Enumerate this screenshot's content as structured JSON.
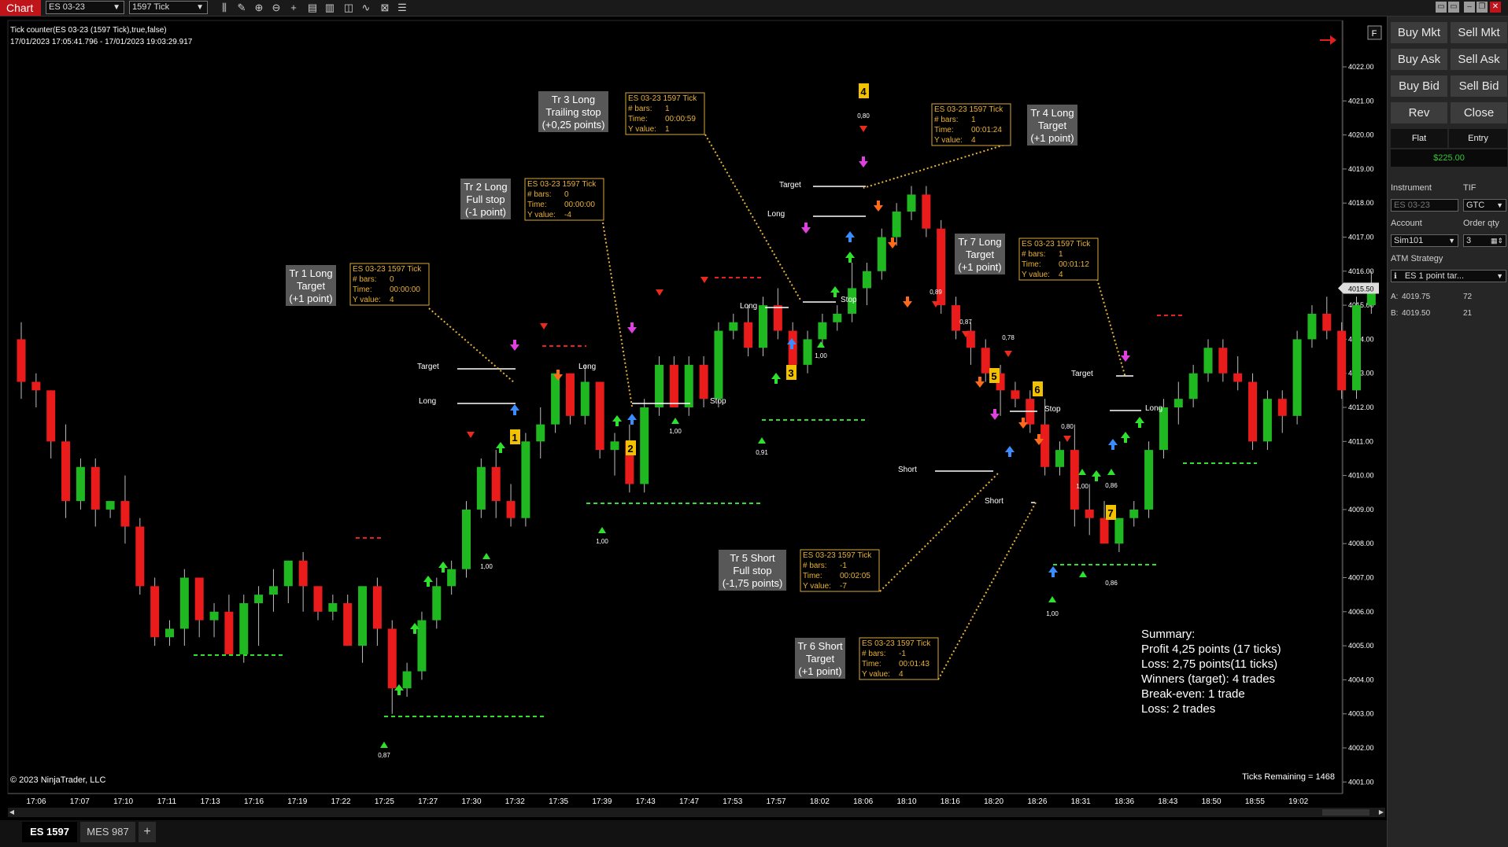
{
  "toolbar": {
    "app_label": "Chart",
    "instrument": "ES 03-23",
    "interval": "1597 Tick",
    "icons": [
      "bar-type-icon",
      "draw-tools-icon",
      "zoom-in-icon",
      "zoom-out-icon",
      "crosshair-icon",
      "data-box-icon",
      "properties-icon",
      "strategies-icon",
      "indicators-icon",
      "templates-icon",
      "object-list-icon"
    ]
  },
  "chart_info": {
    "line1": "Tick counter(ES 03-23 (1597 Tick),true,false)",
    "line2": "17/01/2023 17:05:41.796 - 17/01/2023 19:03:29.917",
    "copyright": "© 2023 NinjaTrader, LLC",
    "ticks_remaining": "Ticks Remaining = 1468",
    "f_button": "F",
    "current_price": "4015.50"
  },
  "chart_data": {
    "type": "candlestick",
    "y_axis": {
      "min": 4001.0,
      "max": 4022.0,
      "ticks": [
        "4022.00",
        "4021.00",
        "4020.00",
        "4019.00",
        "4018.00",
        "4017.00",
        "4016.00",
        "4015.00",
        "4014.00",
        "4013.00",
        "4012.00",
        "4011.00",
        "4010.00",
        "4009.00",
        "4008.00",
        "4007.00",
        "4006.00",
        "4005.00",
        "4004.00",
        "4003.00",
        "4002.00",
        "4001.00"
      ]
    },
    "x_labels": [
      "17:06",
      "17:07",
      "17:10",
      "17:11",
      "17:13",
      "17:16",
      "17:19",
      "17:22",
      "17:25",
      "17:27",
      "17:30",
      "17:32",
      "17:35",
      "17:39",
      "17:43",
      "17:47",
      "17:53",
      "17:57",
      "18:02",
      "18:06",
      "18:10",
      "18:16",
      "18:20",
      "18:26",
      "18:31",
      "18:36",
      "18:43",
      "18:50",
      "18:55",
      "19:02"
    ],
    "candles": [
      [
        4014.0,
        4014.5,
        4012.25,
        4012.75
      ],
      [
        4012.75,
        4013.0,
        4012.0,
        4012.5
      ],
      [
        4012.5,
        4012.5,
        4010.5,
        4011.0
      ],
      [
        4011.0,
        4011.5,
        4008.75,
        4009.25
      ],
      [
        4009.25,
        4010.5,
        4009.0,
        4010.25
      ],
      [
        4010.25,
        4010.5,
        4008.5,
        4009.0
      ],
      [
        4009.0,
        4009.25,
        4008.75,
        4009.25
      ],
      [
        4009.25,
        4010.0,
        4008.0,
        4008.5
      ],
      [
        4008.5,
        4008.75,
        4006.5,
        4006.75
      ],
      [
        4006.75,
        4007.0,
        4005.0,
        4005.25
      ],
      [
        4005.25,
        4005.75,
        4005.0,
        4005.5
      ],
      [
        4005.5,
        4007.25,
        4005.0,
        4007.0
      ],
      [
        4007.0,
        4007.0,
        4005.25,
        4005.75
      ],
      [
        4005.75,
        4006.25,
        4005.25,
        4006.0
      ],
      [
        4006.0,
        4006.5,
        4004.75,
        4004.75
      ],
      [
        4004.75,
        4006.5,
        4004.5,
        4006.25
      ],
      [
        4006.25,
        4006.75,
        4005.0,
        4006.5
      ],
      [
        4006.5,
        4007.25,
        4006.0,
        4006.75
      ],
      [
        4006.75,
        4007.5,
        4006.25,
        4007.5
      ],
      [
        4007.5,
        4007.75,
        4006.0,
        4006.75
      ],
      [
        4006.75,
        4006.75,
        4005.75,
        4006.0
      ],
      [
        4006.0,
        4006.5,
        4005.75,
        4006.25
      ],
      [
        4006.25,
        4006.5,
        4005.0,
        4005.0
      ],
      [
        4005.0,
        4006.75,
        4004.5,
        4006.75
      ],
      [
        4006.75,
        4007.0,
        4005.0,
        4005.5
      ],
      [
        4005.5,
        4005.75,
        4003.0,
        4003.75
      ],
      [
        4003.75,
        4004.5,
        4003.5,
        4004.25
      ],
      [
        4004.25,
        4006.0,
        4004.0,
        4005.75
      ],
      [
        4005.75,
        4007.0,
        4005.5,
        4006.75
      ],
      [
        4006.75,
        4007.5,
        4006.5,
        4007.25
      ],
      [
        4007.25,
        4009.25,
        4007.0,
        4009.0
      ],
      [
        4009.0,
        4010.5,
        4008.75,
        4010.25
      ],
      [
        4010.25,
        4010.75,
        4008.75,
        4009.25
      ],
      [
        4009.25,
        4009.75,
        4008.5,
        4008.75
      ],
      [
        4008.75,
        4011.25,
        4008.5,
        4011.0
      ],
      [
        4011.0,
        4012.0,
        4010.5,
        4011.5
      ],
      [
        4011.5,
        4013.0,
        4011.25,
        4013.0
      ],
      [
        4013.0,
        4013.0,
        4011.5,
        4011.75
      ],
      [
        4011.75,
        4013.25,
        4011.5,
        4012.75
      ],
      [
        4012.75,
        4012.75,
        4010.5,
        4010.75
      ],
      [
        4010.75,
        4011.25,
        4010.0,
        4011.0
      ],
      [
        4011.0,
        4011.5,
        4009.5,
        4009.75
      ],
      [
        4009.75,
        4012.25,
        4009.5,
        4012.0
      ],
      [
        4012.0,
        4013.5,
        4011.75,
        4013.25
      ],
      [
        4013.25,
        4013.5,
        4012.0,
        4012.0
      ],
      [
        4012.0,
        4013.5,
        4011.75,
        4013.25
      ],
      [
        4013.25,
        4013.5,
        4012.0,
        4012.25
      ],
      [
        4012.25,
        4014.5,
        4012.0,
        4014.25
      ],
      [
        4014.25,
        4014.75,
        4014.0,
        4014.5
      ],
      [
        4014.5,
        4015.0,
        4013.5,
        4013.75
      ],
      [
        4013.75,
        4015.25,
        4013.5,
        4015.0
      ],
      [
        4015.0,
        4015.5,
        4014.0,
        4014.25
      ],
      [
        4014.25,
        4014.5,
        4013.0,
        4013.25
      ],
      [
        4013.25,
        4014.25,
        4013.0,
        4014.0
      ],
      [
        4014.0,
        4014.75,
        4013.75,
        4014.5
      ],
      [
        4014.5,
        4015.0,
        4014.25,
        4014.75
      ],
      [
        4014.75,
        4016.25,
        4014.5,
        4015.5
      ],
      [
        4015.5,
        4016.25,
        4015.0,
        4016.0
      ],
      [
        4016.0,
        4017.25,
        4015.75,
        4017.0
      ],
      [
        4017.0,
        4018.0,
        4016.75,
        4017.75
      ],
      [
        4017.75,
        4018.5,
        4017.5,
        4018.25
      ],
      [
        4018.25,
        4018.5,
        4017.0,
        4017.25
      ],
      [
        4017.25,
        4017.5,
        4014.75,
        4015.0
      ],
      [
        4015.0,
        4015.25,
        4014.0,
        4014.25
      ],
      [
        4014.25,
        4014.5,
        4013.25,
        4013.75
      ],
      [
        4013.75,
        4014.0,
        4012.75,
        4013.0
      ],
      [
        4013.0,
        4013.25,
        4011.75,
        4012.5
      ],
      [
        4012.5,
        4012.75,
        4012.0,
        4012.25
      ],
      [
        4012.25,
        4012.5,
        4011.25,
        4011.5
      ],
      [
        4011.5,
        4012.25,
        4010.0,
        4010.25
      ],
      [
        4010.25,
        4011.0,
        4010.0,
        4010.75
      ],
      [
        4010.75,
        4011.5,
        4008.5,
        4009.0
      ],
      [
        4009.0,
        4009.75,
        4008.25,
        4008.75
      ],
      [
        4008.75,
        4009.25,
        4008.0,
        4008.0
      ],
      [
        4008.0,
        4008.75,
        4007.75,
        4008.75
      ],
      [
        4008.75,
        4009.25,
        4008.5,
        4009.0
      ],
      [
        4009.0,
        4011.0,
        4008.75,
        4010.75
      ],
      [
        4010.75,
        4012.25,
        4010.5,
        4012.0
      ],
      [
        4012.0,
        4012.75,
        4011.5,
        4012.25
      ],
      [
        4012.25,
        4013.25,
        4012.0,
        4013.0
      ],
      [
        4013.0,
        4014.0,
        4012.75,
        4013.75
      ],
      [
        4013.75,
        4014.0,
        4012.75,
        4013.0
      ],
      [
        4013.0,
        4013.5,
        4012.5,
        4012.75
      ],
      [
        4012.75,
        4013.0,
        4010.75,
        4011.0
      ],
      [
        4011.0,
        4012.5,
        4010.75,
        4012.25
      ],
      [
        4012.25,
        4012.5,
        4011.25,
        4011.75
      ],
      [
        4011.75,
        4014.25,
        4011.5,
        4014.0
      ],
      [
        4014.0,
        4015.0,
        4013.75,
        4014.75
      ],
      [
        4014.75,
        4015.25,
        4014.0,
        4014.25
      ],
      [
        4014.25,
        4014.5,
        4012.25,
        4012.5
      ],
      [
        4012.5,
        4015.25,
        4012.25,
        4015.0
      ],
      [
        4015.0,
        4016.0,
        4014.75,
        4015.5
      ]
    ]
  },
  "trade_boxes": [
    {
      "l1": "Tr 1 Long",
      "l2": "Target",
      "l3": "(+1 point)"
    },
    {
      "l1": "Tr 2 Long",
      "l2": "Full stop",
      "l3": "(-1 point)"
    },
    {
      "l1": "Tr 3 Long",
      "l2": "Trailing stop",
      "l3": "(+0,25 points)"
    },
    {
      "l1": "Tr 4 Long",
      "l2": "Target",
      "l3": "(+1 point)"
    },
    {
      "l1": "Tr 5 Short",
      "l2": "Full stop",
      "l3": "(-1,75 points)"
    },
    {
      "l1": "Tr 6 Short",
      "l2": "Target",
      "l3": "(+1 point)"
    },
    {
      "l1": "Tr 7 Long",
      "l2": "Target",
      "l3": "(+1 point)"
    }
  ],
  "info_boxes": [
    {
      "title": "ES 03-23 1597 Tick",
      "bars": "0",
      "time": "00:00:00",
      "yval": "4"
    },
    {
      "title": "ES 03-23 1597 Tick",
      "bars": "0",
      "time": "00:00:00",
      "yval": "-4"
    },
    {
      "title": "ES 03-23 1597 Tick",
      "bars": "1",
      "time": "00:00:59",
      "yval": "1"
    },
    {
      "title": "ES 03-23 1597 Tick",
      "bars": "1",
      "time": "00:01:24",
      "yval": "4"
    },
    {
      "title": "ES 03-23 1597 Tick",
      "bars": "-1",
      "time": "00:02:05",
      "yval": "-7"
    },
    {
      "title": "ES 03-23 1597 Tick",
      "bars": "-1",
      "time": "00:01:43",
      "yval": "4"
    },
    {
      "title": "ES 03-23 1597 Tick",
      "bars": "1",
      "time": "00:01:12",
      "yval": "4"
    }
  ],
  "info_labels": {
    "bars": "# bars:",
    "time": "Time:",
    "yval": "Y value:"
  },
  "trade_numbers": [
    "1",
    "2",
    "3",
    "4",
    "5",
    "6",
    "7"
  ],
  "order_labels": {
    "target": "Target",
    "long": "Long",
    "stop": "Stop",
    "short": "Short"
  },
  "values_text": [
    "1,00",
    "0,87",
    "1,00",
    "1,00",
    "0,91",
    "1,00",
    "0,80",
    "0,89",
    "0,87",
    "0,78",
    "0,80",
    "0,86",
    "1,00",
    "1,00",
    "0,86"
  ],
  "summary": {
    "title": "Summary:",
    "profit": "Profit 4,25 points (17 ticks)",
    "loss": "Loss: 2,75 points(11 ticks)",
    "winners": "Winners (target): 4 trades",
    "breakeven": "Break-even: 1 trade",
    "losses": "Loss: 2 trades"
  },
  "order_panel": {
    "buy_mkt": "Buy Mkt",
    "sell_mkt": "Sell Mkt",
    "buy_ask": "Buy Ask",
    "sell_ask": "Sell Ask",
    "buy_bid": "Buy Bid",
    "sell_bid": "Sell Bid",
    "rev": "Rev",
    "close": "Close",
    "flat": "Flat",
    "entry": "Entry",
    "pnl": "$225.00",
    "instrument_label": "Instrument",
    "tif_label": "TIF",
    "instrument_value": "ES 03-23",
    "tif_value": "GTC",
    "account_label": "Account",
    "order_qty_label": "Order qty",
    "account_value": "Sim101",
    "order_qty_value": "3",
    "atm_label": "ATM Strategy",
    "atm_value": "ES 1 point tar...",
    "ask_label": "A:",
    "ask_price": "4019.75",
    "ask_size": "72",
    "bid_label": "B:",
    "bid_price": "4019.50",
    "bid_size": "21"
  },
  "bottom_tabs": {
    "tab1": "ES 1597",
    "tab2": "MES 987",
    "add": "+"
  },
  "colors": {
    "up": "#1fb821",
    "down": "#ea1b1b",
    "info_border": "#d8a83a",
    "info_text": "#e9b233",
    "dotted": "#e8b43a",
    "green_dash": "#2fe02f",
    "red_dash": "#e82020",
    "marker": "#f2c200"
  }
}
